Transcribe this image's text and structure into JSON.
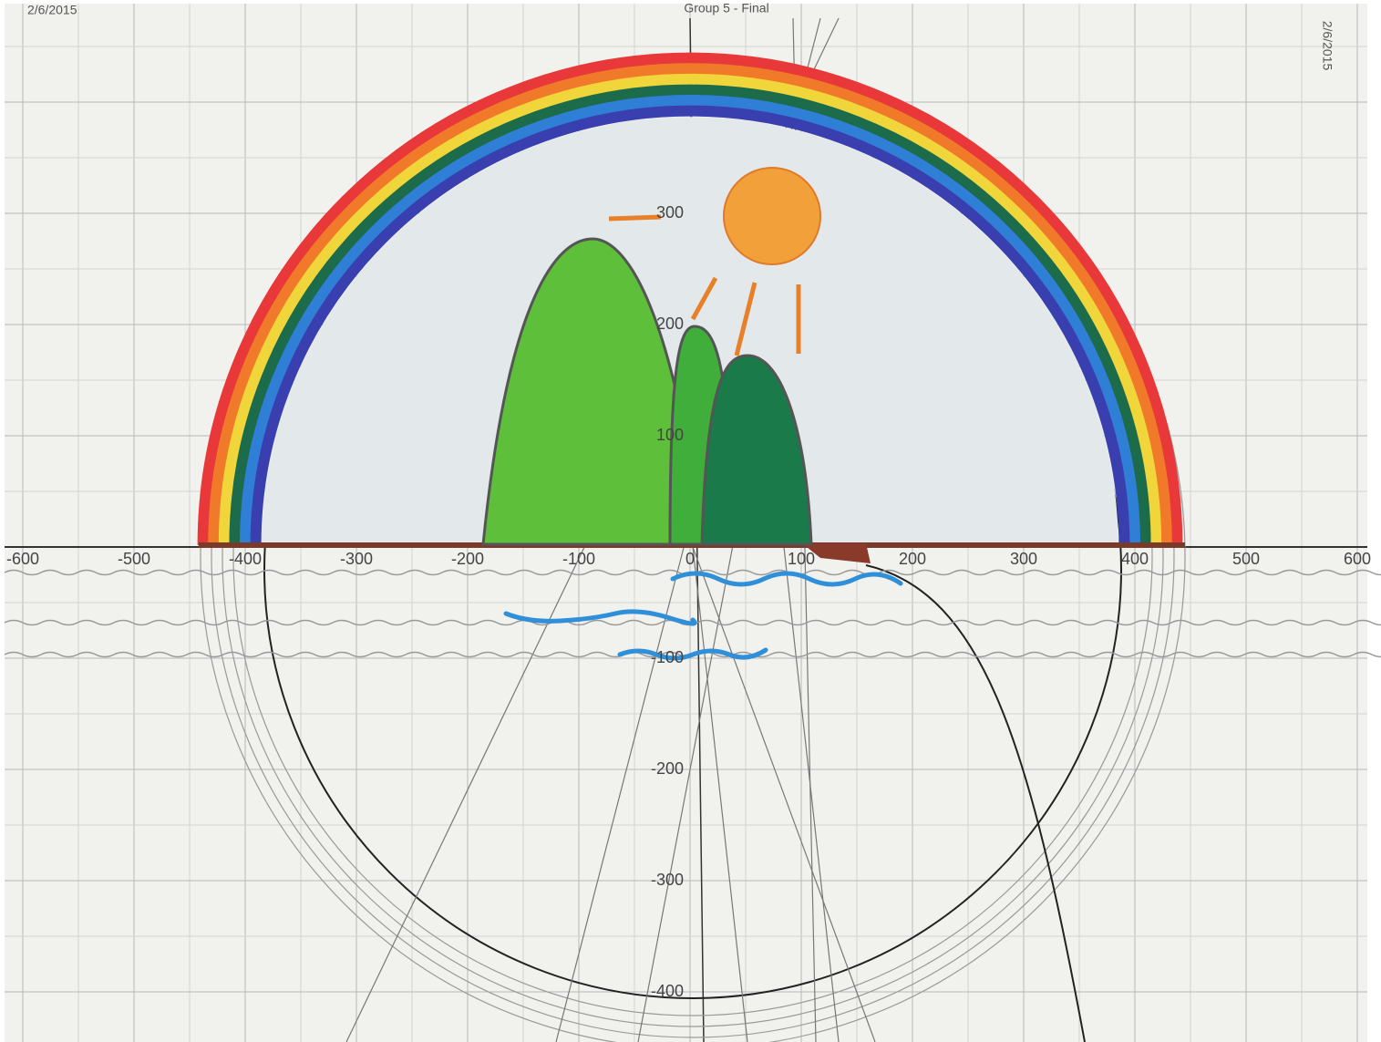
{
  "header": {
    "date_left": "2/6/2015",
    "title": "Group 5 - Final",
    "date_right": "2/6/2015"
  },
  "axes": {
    "x_labels": [
      -600,
      -500,
      -400,
      -300,
      -200,
      -100,
      0,
      100,
      200,
      300,
      400,
      500,
      600
    ],
    "y_labels": [
      300,
      200,
      100,
      -100,
      -200,
      -300,
      -400
    ]
  }
}
